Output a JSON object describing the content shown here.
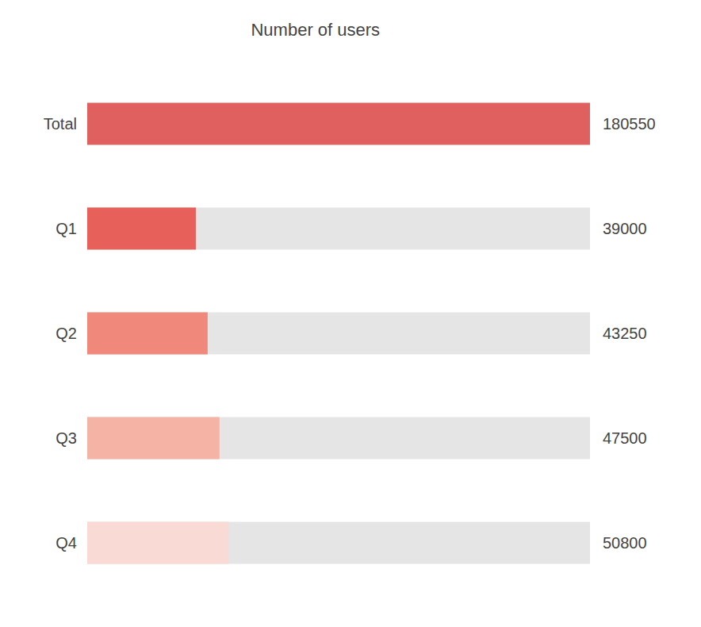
{
  "chart_data": {
    "type": "bar",
    "orientation": "horizontal",
    "title": "Number of users",
    "categories": [
      "Total",
      "Q1",
      "Q2",
      "Q3",
      "Q4"
    ],
    "values": [
      180550,
      39000,
      43250,
      47500,
      50800
    ],
    "colors": [
      "#e06060",
      "#e8605a",
      "#f0897c",
      "#f5b3a5",
      "#fadad4"
    ],
    "track_values": [
      null,
      180550,
      180550,
      180550,
      180550
    ],
    "track_color": "#e5e5e5",
    "xlim": [
      0,
      180550
    ],
    "data_labels": true,
    "tick_labels": "y",
    "grid": false
  }
}
